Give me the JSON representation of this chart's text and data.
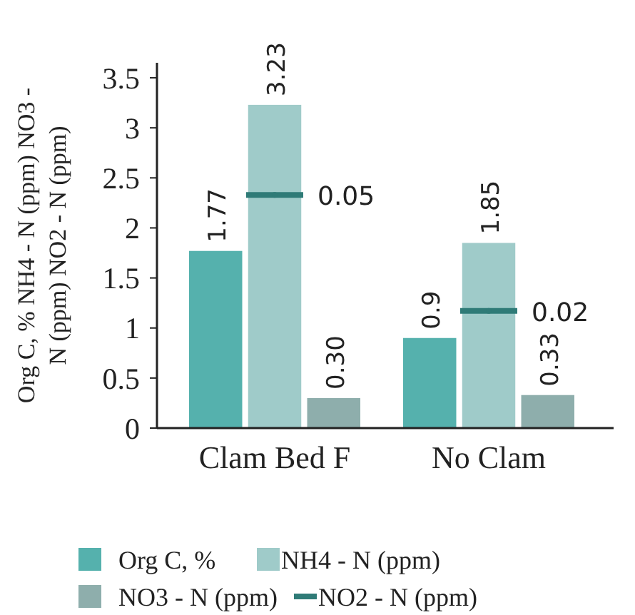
{
  "chart_data": {
    "type": "bar",
    "ylabel": "Org C, % NH4 - N (ppm) NO3 - N (ppm) NO2 - N (ppm)",
    "categories": [
      "Clam Bed F",
      "No Clam"
    ],
    "series": [
      {
        "name": "Org C, %",
        "color": "#55b1ad",
        "values": [
          1.77,
          0.9
        ]
      },
      {
        "name": "NH4 - N (ppm)",
        "color": "#9fcbc9",
        "values": [
          3.23,
          1.85
        ]
      },
      {
        "name": "NO3 - N (ppm)",
        "color": "#8eaeac",
        "values": [
          0.3,
          0.33
        ],
        "value_labels": [
          "0.30",
          "0.33"
        ]
      },
      {
        "name": "NO2 - N (ppm)",
        "color": "#2f7b77",
        "type": "scatter",
        "axis": "y2",
        "values": [
          0.05,
          0.02
        ],
        "value_labels": [
          "0.05",
          "0.02"
        ]
      }
    ],
    "ylim": [
      0,
      3.65
    ],
    "yticks": [
      0,
      0.5,
      1,
      1.5,
      2,
      2.5,
      3,
      3.5
    ],
    "tick_labels": "xy",
    "data_labels": true,
    "legend": "bottom",
    "grid": false
  }
}
